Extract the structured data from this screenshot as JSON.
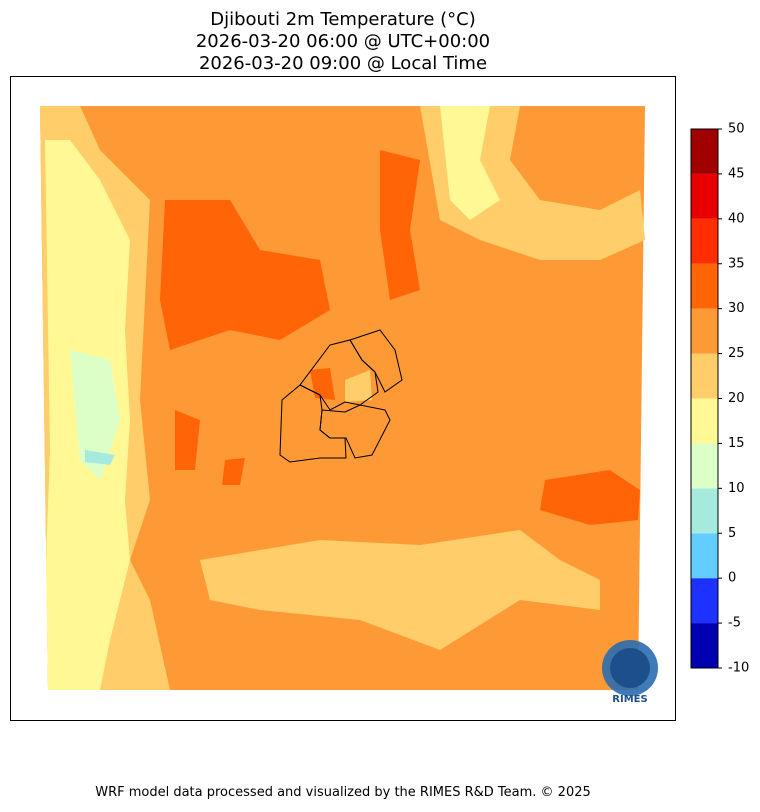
{
  "title": [
    "Djibouti 2m Temperature (°C)",
    "2026-03-20 06:00 @ UTC+00:00",
    "2026-03-20 09:00 @ Local Time"
  ],
  "colorbar": {
    "ticks": [
      -10,
      -5,
      0,
      5,
      10,
      15,
      20,
      25,
      30,
      35,
      40,
      45,
      50
    ],
    "colors": [
      "#0000b0",
      "#1e32ff",
      "#64cdff",
      "#a6eade",
      "#dcffc8",
      "#fff894",
      "#ffcd69",
      "#fe9a35",
      "#ff6407",
      "#ff2e00",
      "#e80000",
      "#a00000"
    ]
  },
  "logo": "RIMES",
  "footer": "WRF model data processed and visualized by the RIMES R&D Team. © 2025"
}
